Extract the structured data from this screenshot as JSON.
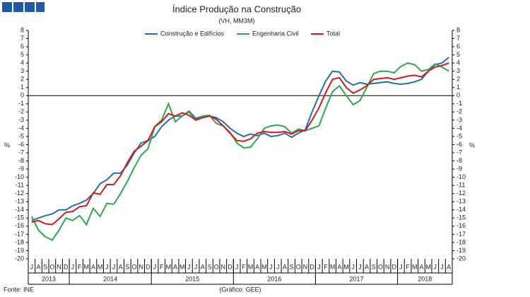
{
  "chart_data": {
    "type": "line",
    "title": "Índice Produção na Construção",
    "subtitle": "(VH, MM3M)",
    "y_label": "%",
    "source": "Fonte: INE",
    "credit": "(Gráfico: GEE)",
    "years": [
      {
        "label": "2013",
        "months": [
          "J",
          "A",
          "S",
          "O",
          "N",
          "D"
        ]
      },
      {
        "label": "2014",
        "months": [
          "J",
          "F",
          "M",
          "A",
          "M",
          "J",
          "J",
          "A",
          "S",
          "O",
          "N",
          "D"
        ]
      },
      {
        "label": "2015",
        "months": [
          "J",
          "F",
          "M",
          "A",
          "M",
          "J",
          "J",
          "A",
          "S",
          "O",
          "N",
          "D"
        ]
      },
      {
        "label": "2016",
        "months": [
          "J",
          "F",
          "M",
          "A",
          "M",
          "J",
          "J",
          "A",
          "S",
          "O",
          "N",
          "D"
        ]
      },
      {
        "label": "2017",
        "months": [
          "J",
          "F",
          "M",
          "A",
          "M",
          "J",
          "J",
          "A",
          "S",
          "O",
          "N",
          "D"
        ]
      },
      {
        "label": "2018",
        "months": [
          "J",
          "F",
          "M",
          "A",
          "M",
          "J",
          "J",
          "A"
        ]
      }
    ],
    "ylim": [
      -20,
      8
    ],
    "yticks": [
      -20,
      -19,
      -18,
      -17,
      -16,
      -15,
      -14,
      -13,
      -12,
      -11,
      -10,
      -9,
      -8,
      -7,
      -6,
      -5,
      -4,
      -3,
      -2,
      -1,
      0,
      1,
      2,
      3,
      4,
      5,
      6,
      7,
      8
    ],
    "series": [
      {
        "name": "Construção e Edifícios",
        "color": "#1f6eb4",
        "values": [
          -15.3,
          -15.0,
          -14.7,
          -14.5,
          -14.0,
          -14.0,
          -13.5,
          -13.2,
          -12.8,
          -12.0,
          -10.8,
          -10.3,
          -9.5,
          -9.5,
          -8.5,
          -7.0,
          -5.8,
          -5.5,
          -5.0,
          -3.8,
          -3.0,
          -2.5,
          -2.5,
          -1.9,
          -2.8,
          -2.5,
          -2.5,
          -2.7,
          -3.2,
          -4.0,
          -4.6,
          -5.0,
          -4.7,
          -4.9,
          -4.6,
          -5.0,
          -4.9,
          -4.6,
          -5.1,
          -4.6,
          -4.2,
          -2.0,
          0.0,
          1.8,
          3.0,
          2.9,
          1.8,
          1.3,
          1.6,
          1.4,
          1.5,
          1.6,
          1.7,
          1.5,
          1.4,
          1.5,
          1.7,
          2.0,
          3.0,
          3.8,
          4.0,
          4.7
        ]
      },
      {
        "name": "Engenharia Civil",
        "color": "#2ca84c",
        "values": [
          -14.8,
          -16.5,
          -17.3,
          -17.7,
          -16.5,
          -15.0,
          -15.3,
          -14.7,
          -15.8,
          -13.8,
          -14.8,
          -13.2,
          -13.3,
          -12.0,
          -10.5,
          -8.8,
          -7.3,
          -6.5,
          -3.8,
          -3.0,
          -1.0,
          -3.2,
          -2.5,
          -2.0,
          -3.0,
          -2.5,
          -2.4,
          -3.4,
          -3.7,
          -4.5,
          -5.8,
          -6.4,
          -6.3,
          -5.3,
          -4.0,
          -3.7,
          -3.6,
          -3.8,
          -4.6,
          -4.1,
          -4.3,
          -4.0,
          -3.7,
          -1.5,
          0.5,
          1.2,
          0.0,
          -1.1,
          -0.6,
          1.0,
          2.7,
          3.0,
          3.0,
          2.8,
          3.6,
          4.0,
          3.8,
          3.0,
          3.2,
          3.9,
          3.5,
          3.0
        ]
      },
      {
        "name": "Total",
        "color": "#d7191c",
        "values": [
          -15.5,
          -15.3,
          -15.7,
          -15.8,
          -15.1,
          -14.3,
          -14.2,
          -13.6,
          -13.5,
          -11.9,
          -12.1,
          -10.9,
          -10.9,
          -9.8,
          -8.2,
          -6.8,
          -6.2,
          -5.5,
          -3.8,
          -3.2,
          -2.2,
          -2.5,
          -2.1,
          -2.4,
          -3.0,
          -2.7,
          -2.5,
          -2.9,
          -3.7,
          -4.6,
          -5.5,
          -5.6,
          -5.3,
          -4.6,
          -4.4,
          -4.5,
          -4.5,
          -4.4,
          -4.7,
          -4.3,
          -4.3,
          -3.0,
          -1.5,
          0.4,
          2.0,
          2.2,
          1.0,
          0.3,
          0.7,
          1.2,
          2.0,
          2.1,
          2.2,
          2.0,
          2.2,
          2.4,
          2.5,
          2.3,
          3.0,
          3.5,
          3.7,
          4.0
        ]
      }
    ]
  }
}
